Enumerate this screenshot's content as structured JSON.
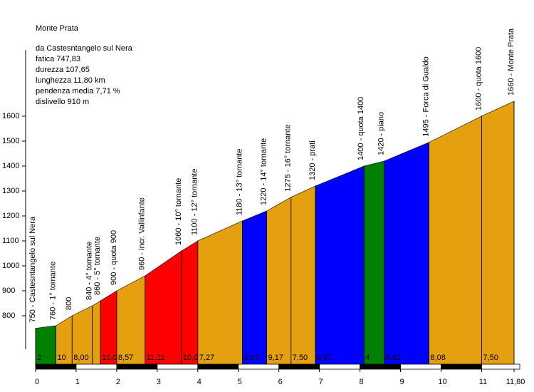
{
  "chart_data": {
    "type": "profile",
    "title": "Monte Prata",
    "info": [
      "da Castesntangelo sul Nera",
      "fatica 747,83",
      "durezza 107,65",
      "lunghezza 11,80 km",
      "pendenza media 7,71 %",
      "dislivello 910 m"
    ],
    "x": [
      0,
      0.5,
      0.9,
      1.4,
      1.6,
      2.0,
      2.7,
      3.6,
      4.0,
      5.1,
      5.7,
      6.3,
      6.9,
      8.1,
      8.6,
      9.7,
      11.0,
      11.8
    ],
    "values": [
      750,
      760,
      800,
      840,
      860,
      900,
      960,
      1060,
      1100,
      1180,
      1220,
      1275,
      1320,
      1400,
      1420,
      1495,
      1600,
      1660
    ],
    "point_labels": [
      "750 - Castesntangelo sul Nera",
      "760 - 1° tornante",
      "800",
      "840 - 4° tornante",
      "860 - 5° tornante",
      "900 - quota 900",
      "960 - incr. Vallinfante",
      "1060 - 10° tornante",
      "1100 - 12° tornante",
      "1180 - 13° tornante",
      "1220 - 14° tornante",
      "1275 - 16° tornante",
      "1320 - prati",
      "1400 - quota 1400",
      "1420 - piano",
      "1495 - Forca di Gualdo",
      "1600 - quota 1600",
      "1660 - Monte Prata"
    ],
    "gradient_labels": [
      "2",
      "10",
      "8,00",
      null,
      "10,00",
      "8,57",
      "11,11",
      "10,00",
      "7,27",
      "6,67",
      "9,17",
      "7,50",
      "6,67",
      "4",
      "6,82",
      "8,08",
      "7,50"
    ],
    "segment_colors": [
      "#008000",
      "#e5a00f",
      "#e5a00f",
      "#e5a00f",
      "#ff0000",
      "#e5a00f",
      "#ff0000",
      "#ff0000",
      "#e5a00f",
      "#0000ff",
      "#e5a00f",
      "#e5a00f",
      "#0000ff",
      "#008000",
      "#0000ff",
      "#e5a00f",
      "#e5a00f"
    ],
    "xlim": [
      0,
      11.8
    ],
    "ylim": [
      600,
      1700
    ],
    "xticks": [
      0,
      1,
      2,
      3,
      4,
      5,
      6,
      7,
      8,
      9,
      10,
      11,
      {
        "value": 11.8,
        "label": "11,80"
      }
    ],
    "yticks": [
      800,
      900,
      1000,
      1100,
      1200,
      1300,
      1400,
      1500,
      1600
    ]
  }
}
